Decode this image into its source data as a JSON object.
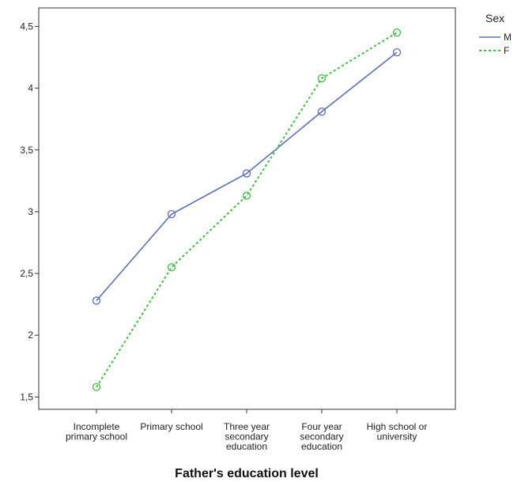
{
  "chart_data": {
    "type": "line",
    "title": "",
    "xlabel": "Father's education level",
    "ylabel": "",
    "categories": [
      [
        "Incomplete",
        "primary school"
      ],
      [
        "Primary school"
      ],
      [
        "Three year",
        "secondary",
        "education"
      ],
      [
        "Four year",
        "secondary",
        "education"
      ],
      [
        "High school or",
        "university"
      ]
    ],
    "ylim": [
      1.4,
      4.65
    ],
    "yticks": [
      {
        "value": 1.5,
        "label": "1,5"
      },
      {
        "value": 2,
        "label": "2"
      },
      {
        "value": 2.5,
        "label": "2,5"
      },
      {
        "value": 3,
        "label": "3"
      },
      {
        "value": 3.5,
        "label": "3,5"
      },
      {
        "value": 4,
        "label": "4"
      },
      {
        "value": 4.5,
        "label": "4,5"
      }
    ],
    "grid": false,
    "legend": {
      "title": "Sex",
      "placement": "right"
    },
    "series": [
      {
        "name": "M",
        "color": "#5b6fb5",
        "dash": "solid",
        "values": [
          2.28,
          2.98,
          3.31,
          3.81,
          4.29
        ]
      },
      {
        "name": "F",
        "color": "#3fbf3f",
        "dash": "dotted",
        "values": [
          1.58,
          2.55,
          3.13,
          4.08,
          4.45
        ]
      }
    ]
  }
}
